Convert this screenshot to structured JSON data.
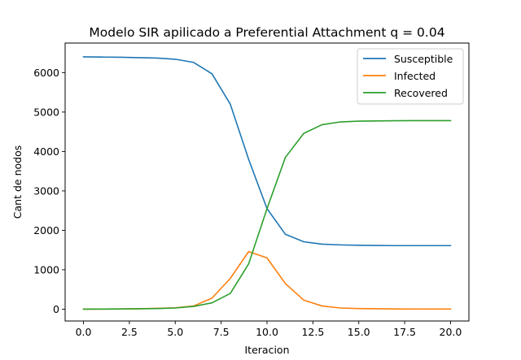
{
  "chart_data": {
    "type": "line",
    "title": "Modelo SIR apilicado a Preferential Attachment q = 0.04",
    "xlabel": "Iteracion",
    "ylabel": "Cant de nodos",
    "xlim": [
      -1,
      21
    ],
    "ylim": [
      -300,
      6750
    ],
    "xticks": [
      0,
      2.5,
      5,
      7.5,
      10,
      12.5,
      15,
      17.5,
      20
    ],
    "xtick_labels": [
      "0.0",
      "2.5",
      "5.0",
      "7.5",
      "10.0",
      "12.5",
      "15.0",
      "17.5",
      "20.0"
    ],
    "yticks": [
      0,
      1000,
      2000,
      3000,
      4000,
      5000,
      6000
    ],
    "ytick_labels": [
      "0",
      "1000",
      "2000",
      "3000",
      "4000",
      "5000",
      "6000"
    ],
    "grid": false,
    "legend_position": "top-right",
    "x": [
      0,
      1,
      2,
      3,
      4,
      5,
      6,
      7,
      8,
      9,
      10,
      11,
      12,
      13,
      14,
      15,
      16,
      17,
      18,
      19,
      20
    ],
    "series": [
      {
        "name": "Susceptible",
        "color": "#1f77b4",
        "values": [
          6400,
          6395,
          6390,
          6380,
          6370,
          6340,
          6260,
          5970,
          5200,
          3800,
          2550,
          1900,
          1710,
          1650,
          1630,
          1620,
          1615,
          1612,
          1612,
          1612,
          1612
        ]
      },
      {
        "name": "Infected",
        "color": "#ff7f0e",
        "values": [
          0,
          2,
          5,
          10,
          20,
          35,
          80,
          280,
          780,
          1460,
          1300,
          650,
          230,
          80,
          30,
          15,
          10,
          6,
          4,
          3,
          2
        ]
      },
      {
        "name": "Recovered",
        "color": "#2ca02c",
        "values": [
          0,
          3,
          5,
          10,
          15,
          30,
          70,
          160,
          400,
          1150,
          2550,
          3850,
          4460,
          4680,
          4750,
          4770,
          4775,
          4780,
          4782,
          4783,
          4783
        ]
      }
    ]
  }
}
